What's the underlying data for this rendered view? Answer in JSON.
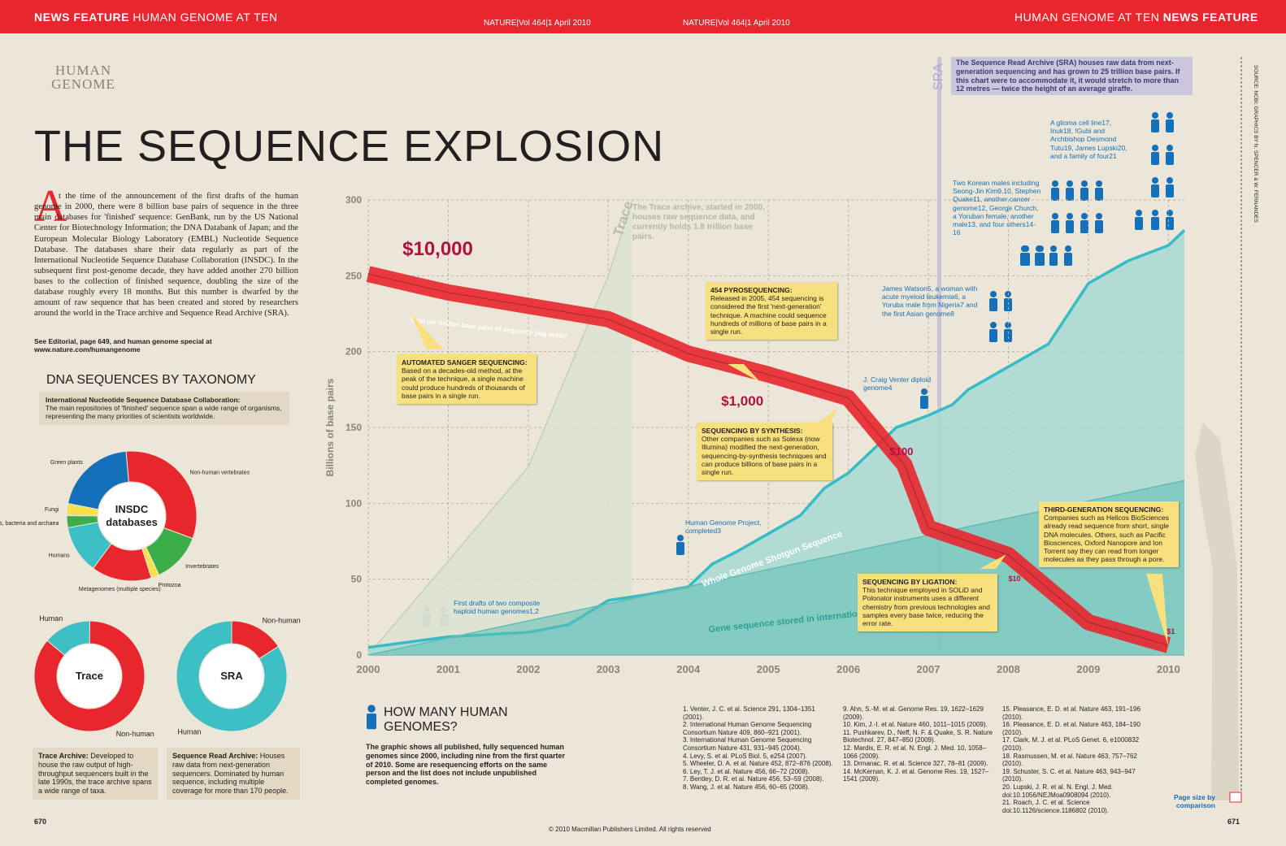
{
  "header": {
    "left_bold": "NEWS FEATURE",
    "left": "HUMAN GENOME AT TEN",
    "center_left": "NATURE|Vol 464|1 April 2010",
    "center_right": "NATURE|Vol 464|1 April 2010",
    "right": "HUMAN GENOME AT TEN",
    "right_bold": "NEWS FEATURE"
  },
  "logo": "HUMAN GENOME",
  "title": "THE SEQUENCE EXPLOSION",
  "intro": {
    "dropcap": "A",
    "text": "t the time of the announcement of the first drafts of the human genome in 2000, there were 8 billion base pairs of sequence in the three main databases for 'finished' sequence: GenBank, run by the US National Center for Biotechnology Information; the DNA Databank of Japan; and the European Molecular Biology Laboratory (EMBL) Nucleotide Sequence Database. The databases share their data regularly as part of the International Nucleotide Sequence Database Collaboration (INSDC). In the subsequent first post-genome decade, they have added another 270 billion bases to the collection of finished sequence, doubling the size of the database roughly every 18 months. But this number is dwarfed by the amount of raw sequence that has been created and stored by researchers around the world in the Trace archive and Sequence Read Archive (SRA).",
    "link": "See Editorial, page 649, and human genome special at www.nature.com/humangenome"
  },
  "taxonomy": {
    "heading": "DNA SEQUENCES BY TAXONOMY",
    "note_bold": "International Nucleotide Sequence Database Collaboration:",
    "note": "The main repositories of 'finished' sequence span a wide range of organisms, representing the many priorities of scientists worldwide."
  },
  "trace_note": {
    "bold": "Trace Archive:",
    "text": "Developed to house the raw output of high-throughput sequencers built in the late 1990s, the trace archive spans a wide range of taxa."
  },
  "sra_note": {
    "bold": "Sequence Read Archive:",
    "text": "Houses raw data from next-generation sequencers. Dominated by human sequence, including multiple coverage for more than 170 people."
  },
  "sra_box": "The Sequence Read Archive (SRA) houses raw data from next-generation sequencing and has grown to 25 trillion base pairs. If this chart were to accommodate it, it would stretch to more than 12 metres — twice the height of an average giraffe.",
  "sra_label": "SRA",
  "credit": "SOURCE: NCBI; GRAPHICS BY N. SPENCER & W. FERNANDES",
  "page_size": "Page size by comparison",
  "how_many": {
    "title": "HOW MANY HUMAN GENOMES?",
    "text": "The graphic shows all published, fully sequenced human genomes since 2000, including nine from the first quarter of 2010. Some are resequencing efforts on the same person and the list does not include unpublished completed genomes."
  },
  "references": [
    "1. Venter, J. C. et al. Science 291, 1304–1351 (2001).",
    "2. International Human Genome Sequencing Consortium Nature 409, 860–921 (2001).",
    "3. International Human Genome Sequencing Consortium Nature 431, 931–945 (2004).",
    "4. Levy, S. et al. PLoS Biol. 5, e254 (2007).",
    "5. Wheeler, D. A. et al. Nature 452, 872–876 (2008).",
    "6. Ley, T. J. et al. Nature 456, 66–72 (2008).",
    "7. Bentley, D. R. et al. Nature 456, 53–59 (2008).",
    "8. Wang, J. et al. Nature 456, 60–65 (2008).",
    "9. Ahn, S.-M. et al. Genome Res. 19, 1622–1629 (2009).",
    "10. Kim, J.-I. et al. Nature 460, 1011–1015 (2009).",
    "11. Pushkarev, D., Neff, N. F. & Quake, S. R. Nature Biotechnol. 27, 847–850 (2009).",
    "12. Mardis, E. R. et al. N. Engl. J. Med. 10, 1058–1066 (2009).",
    "13. Drmanac, R. et al. Science 327, 78–81 (2009).",
    "14. McKernan, K. J. et al. Genome Res. 19, 1527–1541 (2009).",
    "15. Pleasance, E. D. et al. Nature 463, 191–196 (2010).",
    "16. Pleasance, E. D. et al. Nature 463, 184–190 (2010).",
    "17. Clark, M. J. et al. PLoS Genet. 6, e1000832 (2010).",
    "18. Rasmussen, M. et al. Nature 463, 757–762 (2010).",
    "19. Schuster, S. C. et al. Nature 463, 943–947 (2010).",
    "20. Lupski, J. R. et al. N. Engl. J. Med. doi:10.1056/NEJMoa0908094 (2010).",
    "21. Roach, J. C. et al. Science doi:10.1126/science.1186802 (2010)."
  ],
  "page_left": "670",
  "page_right": "671",
  "copyright": "© 2010 Macmillan Publishers Limited. All rights reserved",
  "chart_data": [
    {
      "type": "line",
      "y_label": "Billions of base pairs",
      "xlim": [
        2000,
        2010.2
      ],
      "xticks": [
        2000,
        2001,
        2002,
        2003,
        2004,
        2005,
        2006,
        2007,
        2008,
        2009,
        2010
      ],
      "ylim": [
        0,
        300
      ],
      "yticks": [
        0,
        50,
        100,
        150,
        200,
        250,
        300
      ],
      "grid": true,
      "y2lim": [
        0.78,
        86000
      ],
      "y2log": true,
      "series": [
        {
          "name": "Trace",
          "color": "#c6cfb9",
          "fill": "#dde2d1",
          "x": [
            2000,
            2001,
            2002,
            2003,
            2003.3
          ],
          "values": [
            0,
            62,
            124,
            250,
            300
          ]
        },
        {
          "name": "Whole Genome Shotgun Sequence",
          "color": "#35bcc6",
          "fill": "#a7d8d2",
          "x": [
            2000,
            2001,
            2002,
            2002.5,
            2003,
            2003.5,
            2004,
            2004.3,
            2004.6,
            2005,
            2005.4,
            2005.7,
            2006,
            2006.3,
            2006.6,
            2007,
            2007.3,
            2007.5,
            2008,
            2008.5,
            2009,
            2009.5,
            2010,
            2010.2
          ],
          "values": [
            5,
            12,
            15,
            20,
            36,
            40,
            45,
            60,
            68,
            80,
            92,
            110,
            120,
            135,
            150,
            158,
            165,
            175,
            190,
            205,
            245,
            260,
            270,
            280
          ]
        },
        {
          "name": "Gene sequence stored in international public databases",
          "color": "#5fbdb5",
          "fill": "#5fbdb5",
          "x": [
            2000,
            2010.2
          ],
          "values": [
            0,
            115
          ]
        },
        {
          "name": "Cost per million base pairs of sequence (log scale)",
          "color": "#e8262e",
          "axis": "y2",
          "x": [
            2000,
            2000.55,
            2001,
            2003,
            2004,
            2005,
            2006,
            2006.7,
            2007,
            2008,
            2009,
            2010
          ],
          "values": [
            13000,
            10000,
            8100,
            4100,
            1700,
            1000,
            550,
            100,
            20,
            10,
            1.8,
            1
          ],
          "value_labels": [
            null,
            "$10,000",
            null,
            null,
            null,
            "$1,000",
            null,
            "$100",
            null,
            "$10",
            null,
            "$1"
          ]
        }
      ],
      "trace_note": "The Trace archive, started in 2000, houses raw sequence data, and currently holds 1.8 trillion base pairs.",
      "annotations": [
        {
          "title": "AUTOMATED SANGER SEQUENCING:",
          "text": "Based on a decades-old method, at the peak of the technique, a single machine could produce hundreds of thousands of base pairs in a single run."
        },
        {
          "title": "454 PYROSEQUENCING:",
          "text": "Released in 2005, 454 sequencing is considered the first 'next-generation' technique. A machine could sequence hundreds of millions of base pairs in a single run."
        },
        {
          "title": "SEQUENCING BY SYNTHESIS:",
          "text": "Other companies such as Solexa (now Illumina) modified the next-generation, sequencing-by-synthesis techniques and can produce billions of base pairs in a single run."
        },
        {
          "title": "SEQUENCING BY LIGATION:",
          "text": "This technique employed in SOLiD and Polonator instruments uses a different chemistry from previous technologies and samples every base twice, reducing the error rate."
        },
        {
          "title": "THIRD-GENERATION SEQUENCING:",
          "text": "Companies such as Helicos BioSciences already read sequence from short, single DNA molecules. Others, such as Pacific Biosciences, Oxford Nanopore and Ion Torrent say they can read from longer molecules as they pass through a pore."
        }
      ],
      "genome_notes": [
        "First drafts of two composite haploid human genomes1,2",
        "Human Genome Project, completed3",
        "J. Craig Venter diploid genome4",
        "James Watson5, a woman with acute myeloid leukemia6, a Yoruba male from Nigeria7 and the first Asian genome8",
        "Two Korean males including Seong-Jin Kim9,10, Stephen Quake11, another cancer genome12, George Church, a Yoruban female, another male13, and four others14-16",
        "A glioma cell line17, Inuk18, !Gubi and Archbishop Desmond Tutu19, James Lupski20, and a family of four21"
      ]
    },
    {
      "type": "pie",
      "center_label": "INSDC databases",
      "categories": [
        "Non-human vertebrates",
        "Invertebrates",
        "Protozoa",
        "Metagenomes (multiple species)",
        "Humans",
        "Viruses, bacteria and archaea",
        "Fungi",
        "Green plants"
      ],
      "values": [
        32,
        12.5,
        2,
        15,
        12,
        3,
        3,
        20.5
      ],
      "colors": [
        "#e8262e",
        "#3cae49",
        "#f6e04b",
        "#e8262e",
        "#3dbfc6",
        "#3cae49",
        "#f6e04b",
        "#1470b8"
      ]
    },
    {
      "type": "pie",
      "center_label": "Trace",
      "categories": [
        "Human",
        "Non-human"
      ],
      "values": [
        14,
        86
      ],
      "colors": [
        "#3dbfc6",
        "#e8262e"
      ]
    },
    {
      "type": "pie",
      "center_label": "SRA",
      "categories": [
        "Non-human",
        "Human"
      ],
      "values": [
        16,
        84
      ],
      "colors": [
        "#e8262e",
        "#3dbfc6"
      ]
    }
  ]
}
